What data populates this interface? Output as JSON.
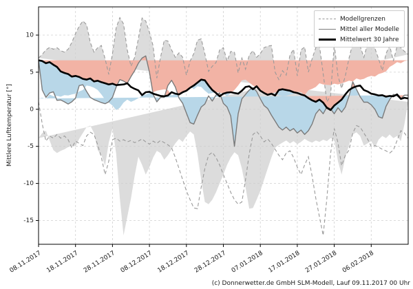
{
  "chart_data": {
    "type": "line",
    "title": "",
    "ylabel": "Mittlere Lufttemperatur [°]",
    "xlabel": "",
    "x_start_date": "08.11.2017",
    "x_step_days": 1,
    "n_points": 101,
    "xtick_days": [
      0,
      10,
      20,
      30,
      40,
      50,
      60,
      70,
      80,
      90
    ],
    "xtick_labels": [
      "08.11.2017",
      "18.11.2017",
      "28.11.2017",
      "08.12.2017",
      "18.12.2017",
      "28.12.2017",
      "07.01.2018",
      "17.01.2018",
      "27.01.2018",
      "06.02.2018"
    ],
    "ytick_values": [
      10,
      5,
      0,
      -5,
      -10,
      -15
    ],
    "ytick_labels": [
      "10",
      "5",
      "0",
      "-5",
      "-10",
      "-15"
    ],
    "ylim": [
      -18.2,
      13.8
    ],
    "grid": true,
    "legend_position": "upper right",
    "legend": [
      "Modellgrenzen",
      "Mittel aller Modelle",
      "Mittelwert 30 Jahre"
    ],
    "footer": "(c) Donnerwetter.de GmbH SLM-Modell, Lauf 09.11.2017 00 Uhr",
    "colors": {
      "band_fill": "#dcdcdc",
      "band_edge": "#999999",
      "below_mean_fill": "#b8d7e8",
      "above_mean_fill": "#f2b3a5",
      "model_mean_line": "#7a7a7a",
      "climate_mean_line": "#000000",
      "grid_line": "#cfcfcf",
      "axis_text": "#1a1a1a"
    },
    "series": [
      {
        "name": "Modellgrenzen oben",
        "role": "band_upper",
        "values": [
          6.9,
          7.4,
          8.0,
          8.35,
          8.1,
          8.3,
          7.9,
          7.7,
          8.1,
          9.0,
          10.2,
          11.2,
          11.9,
          11.4,
          9.0,
          7.7,
          8.3,
          8.6,
          6.8,
          4.7,
          7.5,
          11.0,
          12.35,
          11.5,
          8.0,
          5.8,
          7.0,
          9.5,
          12.3,
          11.9,
          10.4,
          8.5,
          4.2,
          7.0,
          9.3,
          9.2,
          8.0,
          7.0,
          7.6,
          7.0,
          4.6,
          6.5,
          7.5,
          9.3,
          9.5,
          7.5,
          5.1,
          5.8,
          6.3,
          8.0,
          8.3,
          6.5,
          7.8,
          7.7,
          4.9,
          6.9,
          5.4,
          7.3,
          7.9,
          7.0,
          7.5,
          8.3,
          8.5,
          8.6,
          5.0,
          4.0,
          5.2,
          4.6,
          7.3,
          8.1,
          4.5,
          8.0,
          8.4,
          5.0,
          6.8,
          8.3,
          8.6,
          4.8,
          1.0,
          1.8,
          8.8,
          4.5,
          2.8,
          4.5,
          6.9,
          8.9,
          9.5,
          8.5,
          7.0,
          8.8,
          9.3,
          8.2,
          6.8,
          5.2,
          7.5,
          8.6,
          6.5,
          8.5,
          8.3,
          7.8,
          7.4
        ]
      },
      {
        "name": "Modellgrenzen unten",
        "role": "band_lower",
        "values": [
          1.0,
          -2.0,
          -4.3,
          -3.6,
          -3.9,
          -3.4,
          -3.9,
          -3.6,
          -4.1,
          -5.2,
          -4.3,
          -4.6,
          -4.9,
          -3.6,
          -3.1,
          -3.4,
          -4.8,
          -6.5,
          -8.8,
          -7.0,
          -4.1,
          -3.9,
          -4.3,
          -4.1,
          -4.4,
          -4.2,
          -4.5,
          -4.3,
          -4.0,
          -4.4,
          -4.7,
          -4.3,
          -4.6,
          -4.2,
          -4.5,
          -4.8,
          -5.2,
          -6.5,
          -8.0,
          -9.5,
          -11.0,
          -12.2,
          -13.3,
          -13.4,
          -10.5,
          -8.0,
          -6.2,
          -5.8,
          -6.5,
          -7.5,
          -8.8,
          -10.0,
          -11.2,
          -12.2,
          -12.8,
          -12.5,
          -9.5,
          -6.0,
          -3.4,
          -3.0,
          -3.6,
          -4.4,
          -4.0,
          -4.6,
          -5.4,
          -6.2,
          -6.8,
          -5.9,
          -5.6,
          -6.5,
          -7.8,
          -8.8,
          -7.5,
          -6.4,
          -9.0,
          -12.0,
          -14.5,
          -17.0,
          -12.0,
          -6.0,
          -2.6,
          -4.5,
          -7.6,
          -6.2,
          -5.5,
          -3.2,
          -2.2,
          -2.4,
          -3.2,
          -4.0,
          -5.0,
          -4.9,
          -5.1,
          -5.4,
          -5.6,
          -5.9,
          -5.5,
          -4.2,
          -2.9,
          -3.2,
          -3.9
        ]
      },
      {
        "name": "Mittel aller Modelle",
        "role": "model_mean",
        "values": [
          6.6,
          2.6,
          1.6,
          2.2,
          2.35,
          1.2,
          1.25,
          1.0,
          0.7,
          1.0,
          1.5,
          3.2,
          3.3,
          2.4,
          1.6,
          1.3,
          1.1,
          0.9,
          0.75,
          1.0,
          1.6,
          3.0,
          4.0,
          3.8,
          3.5,
          4.4,
          5.2,
          6.2,
          6.9,
          7.2,
          5.0,
          2.0,
          1.0,
          1.6,
          1.6,
          3.2,
          3.9,
          3.0,
          1.5,
          0.8,
          -0.5,
          -1.8,
          -2.0,
          -0.8,
          0.3,
          0.7,
          1.8,
          1.1,
          1.9,
          2.2,
          0.8,
          0.3,
          -0.9,
          -5.0,
          -0.6,
          1.4,
          2.0,
          2.6,
          2.9,
          2.4,
          1.4,
          0.5,
          0.1,
          -0.8,
          -1.6,
          -2.4,
          -2.8,
          -2.4,
          -2.9,
          -2.6,
          -3.2,
          -2.8,
          -3.4,
          -2.9,
          -2.0,
          -0.6,
          0.0,
          -0.6,
          0.3,
          0.05,
          -0.6,
          0.2,
          -0.4,
          0.3,
          1.8,
          3.7,
          2.7,
          1.7,
          0.95,
          0.95,
          0.6,
          0.0,
          -1.0,
          -1.2,
          0.4,
          1.3,
          2.0,
          1.8,
          1.4,
          1.9,
          1.9
        ]
      },
      {
        "name": "Mittelwert 30 Jahre",
        "role": "climate_mean",
        "values": [
          6.6,
          6.5,
          6.2,
          6.35,
          6.0,
          5.7,
          5.1,
          4.9,
          4.75,
          4.4,
          4.5,
          4.35,
          4.1,
          4.0,
          4.15,
          3.75,
          3.85,
          3.65,
          3.5,
          3.35,
          3.45,
          3.25,
          3.3,
          3.35,
          3.5,
          3.0,
          2.75,
          2.55,
          1.9,
          2.3,
          2.35,
          2.1,
          1.95,
          1.8,
          1.75,
          1.85,
          2.3,
          2.1,
          2.0,
          2.3,
          2.5,
          2.9,
          3.2,
          3.6,
          4.0,
          3.9,
          3.2,
          2.6,
          2.2,
          1.75,
          2.1,
          2.25,
          2.3,
          2.2,
          2.1,
          2.5,
          3.0,
          3.1,
          2.7,
          3.1,
          2.5,
          2.2,
          1.95,
          2.1,
          1.85,
          2.6,
          2.7,
          2.6,
          2.5,
          2.3,
          2.2,
          2.0,
          1.85,
          1.5,
          1.2,
          1.0,
          1.3,
          0.9,
          0.2,
          -0.1,
          0.5,
          0.9,
          1.3,
          2.0,
          2.6,
          2.9,
          3.1,
          3.2,
          2.6,
          2.4,
          2.1,
          2.0,
          1.85,
          1.9,
          1.7,
          1.8,
          1.75,
          2.0,
          1.4,
          1.55,
          1.45
        ]
      }
    ]
  }
}
